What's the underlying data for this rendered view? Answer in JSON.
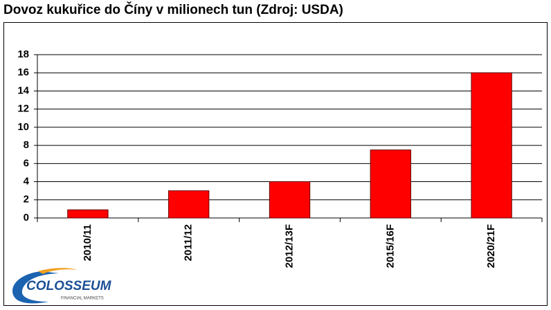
{
  "chart_data": {
    "type": "bar",
    "title": "Dovoz kukuřice do Číny v milionech tun (Zdroj: USDA)",
    "categories": [
      "2010/11",
      "2011/12",
      "2012/13F",
      "2015/16F",
      "2020/21F"
    ],
    "values": [
      0.9,
      3,
      4,
      7.5,
      16
    ],
    "color": "#ff0000",
    "ylim": [
      0,
      18
    ],
    "yticks": [
      0,
      2,
      4,
      6,
      8,
      10,
      12,
      14,
      16,
      18
    ],
    "grid": true
  },
  "logo": {
    "name": "COLOSSEUM",
    "tagline": "FINANCIAL MARKETS"
  }
}
